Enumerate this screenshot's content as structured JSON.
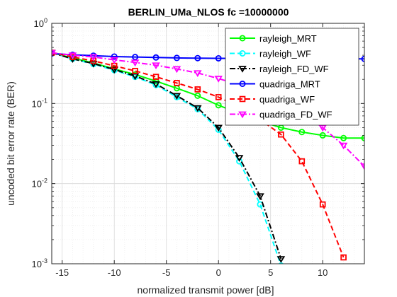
{
  "chart_data": {
    "type": "line",
    "title": "BERLIN_UMa_NLOS fc =10000000",
    "xlabel": "normalized transmit power [dB]",
    "ylabel": "uncoded bit error rate (BER)",
    "xlim": [
      -16,
      14
    ],
    "ylim": [
      0.001,
      1
    ],
    "yscale": "log",
    "grid": true,
    "minor_grid": true,
    "legend_position": "top-right",
    "x_ticks": [
      {
        "value": -15,
        "label": "-15"
      },
      {
        "value": -10,
        "label": "-10"
      },
      {
        "value": -5,
        "label": "-5"
      },
      {
        "value": 0,
        "label": "0"
      },
      {
        "value": 5,
        "label": "5"
      },
      {
        "value": 10,
        "label": "10"
      }
    ],
    "y_ticks": [
      {
        "value": 1,
        "base": "10",
        "exp": "0"
      },
      {
        "value": 0.1,
        "base": "10",
        "exp": "-1"
      },
      {
        "value": 0.01,
        "base": "10",
        "exp": "-2"
      },
      {
        "value": 0.001,
        "base": "10",
        "exp": "-3"
      }
    ],
    "series": [
      {
        "name": "rayleigh_MRT",
        "color": "#00ff00",
        "line": "solid",
        "marker": "circle",
        "x": [
          -16,
          -14,
          -12,
          -10,
          -8,
          -6,
          -4,
          -2,
          0,
          2,
          4,
          6,
          8,
          10,
          12,
          14
        ],
        "y": [
          0.43,
          0.37,
          0.32,
          0.27,
          0.23,
          0.19,
          0.155,
          0.125,
          0.095,
          0.075,
          0.06,
          0.05,
          0.044,
          0.04,
          0.037,
          0.037
        ]
      },
      {
        "name": "rayleigh_WF",
        "color": "#00ffff",
        "line": "dashed",
        "marker": "circle",
        "x": [
          -16,
          -14,
          -12,
          -10,
          -8,
          -6,
          -4,
          -2,
          0,
          2,
          4,
          6
        ],
        "y": [
          0.43,
          0.36,
          0.31,
          0.26,
          0.215,
          0.17,
          0.12,
          0.085,
          0.047,
          0.019,
          0.0055,
          0.00095
        ]
      },
      {
        "name": "rayleigh_FD_WF",
        "color": "#000000",
        "line": "dashdot",
        "marker": "triangle-down",
        "x": [
          -16,
          -14,
          -12,
          -10,
          -8,
          -6,
          -4,
          -2,
          0,
          2,
          4,
          6
        ],
        "y": [
          0.43,
          0.36,
          0.315,
          0.265,
          0.22,
          0.175,
          0.125,
          0.088,
          0.05,
          0.021,
          0.007,
          0.00115
        ]
      },
      {
        "name": "quadriga_MRT",
        "color": "#0000ff",
        "line": "solid",
        "marker": "circle",
        "x": [
          -16,
          -14,
          -12,
          -10,
          -8,
          -6,
          -4,
          -2,
          0,
          2,
          4,
          6,
          8,
          10,
          12,
          14
        ],
        "y": [
          0.42,
          0.405,
          0.395,
          0.385,
          0.38,
          0.375,
          0.37,
          0.368,
          0.366,
          0.365,
          0.364,
          0.363,
          0.362,
          0.362,
          0.361,
          0.36
        ]
      },
      {
        "name": "quadriga_WF",
        "color": "#ff0000",
        "line": "dashed",
        "marker": "square",
        "x": [
          -16,
          -14,
          -12,
          -10,
          -8,
          -6,
          -4,
          -2,
          0,
          2,
          4,
          6,
          8,
          10,
          12
        ],
        "y": [
          0.43,
          0.38,
          0.34,
          0.295,
          0.255,
          0.215,
          0.18,
          0.15,
          0.12,
          0.09,
          0.063,
          0.041,
          0.019,
          0.0055,
          0.0012
        ]
      },
      {
        "name": "quadriga_FD_WF",
        "color": "#ff00ff",
        "line": "dashdot",
        "marker": "triangle-down",
        "x": [
          -16,
          -14,
          -12,
          -10,
          -8,
          -6,
          -4,
          -2,
          0,
          2,
          4,
          6,
          8,
          10,
          12,
          14
        ],
        "y": [
          0.43,
          0.4,
          0.38,
          0.35,
          0.325,
          0.3,
          0.27,
          0.24,
          0.205,
          0.17,
          0.135,
          0.102,
          0.077,
          0.05,
          0.03,
          0.0165
        ]
      }
    ]
  }
}
